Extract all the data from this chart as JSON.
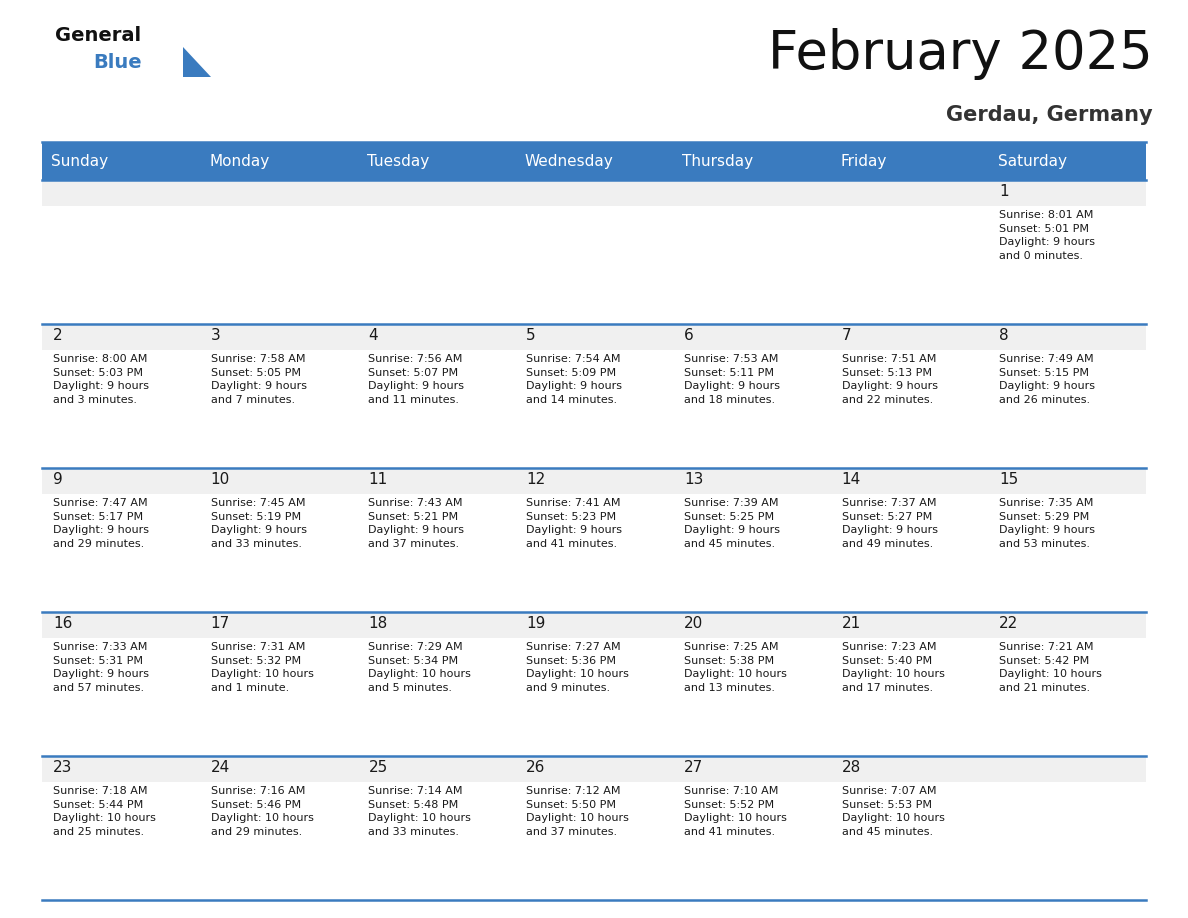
{
  "title": "February 2025",
  "subtitle": "Gerdau, Germany",
  "days_of_week": [
    "Sunday",
    "Monday",
    "Tuesday",
    "Wednesday",
    "Thursday",
    "Friday",
    "Saturday"
  ],
  "header_bg": "#3a7bbf",
  "header_text": "#ffffff",
  "cell_bg": "#f0f0f0",
  "cell_bg_white": "#ffffff",
  "separator_color": "#3a7bbf",
  "day_num_color": "#1a1a1a",
  "info_text_color": "#1a1a1a",
  "title_color": "#111111",
  "subtitle_color": "#333333",
  "logo_general_color": "#111111",
  "logo_blue_color": "#3a7bbf",
  "weeks": [
    [
      {
        "day": null
      },
      {
        "day": null
      },
      {
        "day": null
      },
      {
        "day": null
      },
      {
        "day": null
      },
      {
        "day": null
      },
      {
        "day": 1,
        "sunrise": "8:01 AM",
        "sunset": "5:01 PM",
        "daylight": "9 hours\nand 0 minutes."
      }
    ],
    [
      {
        "day": 2,
        "sunrise": "8:00 AM",
        "sunset": "5:03 PM",
        "daylight": "9 hours\nand 3 minutes."
      },
      {
        "day": 3,
        "sunrise": "7:58 AM",
        "sunset": "5:05 PM",
        "daylight": "9 hours\nand 7 minutes."
      },
      {
        "day": 4,
        "sunrise": "7:56 AM",
        "sunset": "5:07 PM",
        "daylight": "9 hours\nand 11 minutes."
      },
      {
        "day": 5,
        "sunrise": "7:54 AM",
        "sunset": "5:09 PM",
        "daylight": "9 hours\nand 14 minutes."
      },
      {
        "day": 6,
        "sunrise": "7:53 AM",
        "sunset": "5:11 PM",
        "daylight": "9 hours\nand 18 minutes."
      },
      {
        "day": 7,
        "sunrise": "7:51 AM",
        "sunset": "5:13 PM",
        "daylight": "9 hours\nand 22 minutes."
      },
      {
        "day": 8,
        "sunrise": "7:49 AM",
        "sunset": "5:15 PM",
        "daylight": "9 hours\nand 26 minutes."
      }
    ],
    [
      {
        "day": 9,
        "sunrise": "7:47 AM",
        "sunset": "5:17 PM",
        "daylight": "9 hours\nand 29 minutes."
      },
      {
        "day": 10,
        "sunrise": "7:45 AM",
        "sunset": "5:19 PM",
        "daylight": "9 hours\nand 33 minutes."
      },
      {
        "day": 11,
        "sunrise": "7:43 AM",
        "sunset": "5:21 PM",
        "daylight": "9 hours\nand 37 minutes."
      },
      {
        "day": 12,
        "sunrise": "7:41 AM",
        "sunset": "5:23 PM",
        "daylight": "9 hours\nand 41 minutes."
      },
      {
        "day": 13,
        "sunrise": "7:39 AM",
        "sunset": "5:25 PM",
        "daylight": "9 hours\nand 45 minutes."
      },
      {
        "day": 14,
        "sunrise": "7:37 AM",
        "sunset": "5:27 PM",
        "daylight": "9 hours\nand 49 minutes."
      },
      {
        "day": 15,
        "sunrise": "7:35 AM",
        "sunset": "5:29 PM",
        "daylight": "9 hours\nand 53 minutes."
      }
    ],
    [
      {
        "day": 16,
        "sunrise": "7:33 AM",
        "sunset": "5:31 PM",
        "daylight": "9 hours\nand 57 minutes."
      },
      {
        "day": 17,
        "sunrise": "7:31 AM",
        "sunset": "5:32 PM",
        "daylight": "10 hours\nand 1 minute."
      },
      {
        "day": 18,
        "sunrise": "7:29 AM",
        "sunset": "5:34 PM",
        "daylight": "10 hours\nand 5 minutes."
      },
      {
        "day": 19,
        "sunrise": "7:27 AM",
        "sunset": "5:36 PM",
        "daylight": "10 hours\nand 9 minutes."
      },
      {
        "day": 20,
        "sunrise": "7:25 AM",
        "sunset": "5:38 PM",
        "daylight": "10 hours\nand 13 minutes."
      },
      {
        "day": 21,
        "sunrise": "7:23 AM",
        "sunset": "5:40 PM",
        "daylight": "10 hours\nand 17 minutes."
      },
      {
        "day": 22,
        "sunrise": "7:21 AM",
        "sunset": "5:42 PM",
        "daylight": "10 hours\nand 21 minutes."
      }
    ],
    [
      {
        "day": 23,
        "sunrise": "7:18 AM",
        "sunset": "5:44 PM",
        "daylight": "10 hours\nand 25 minutes."
      },
      {
        "day": 24,
        "sunrise": "7:16 AM",
        "sunset": "5:46 PM",
        "daylight": "10 hours\nand 29 minutes."
      },
      {
        "day": 25,
        "sunrise": "7:14 AM",
        "sunset": "5:48 PM",
        "daylight": "10 hours\nand 33 minutes."
      },
      {
        "day": 26,
        "sunrise": "7:12 AM",
        "sunset": "5:50 PM",
        "daylight": "10 hours\nand 37 minutes."
      },
      {
        "day": 27,
        "sunrise": "7:10 AM",
        "sunset": "5:52 PM",
        "daylight": "10 hours\nand 41 minutes."
      },
      {
        "day": 28,
        "sunrise": "7:07 AM",
        "sunset": "5:53 PM",
        "daylight": "10 hours\nand 45 minutes."
      },
      {
        "day": null
      }
    ]
  ]
}
